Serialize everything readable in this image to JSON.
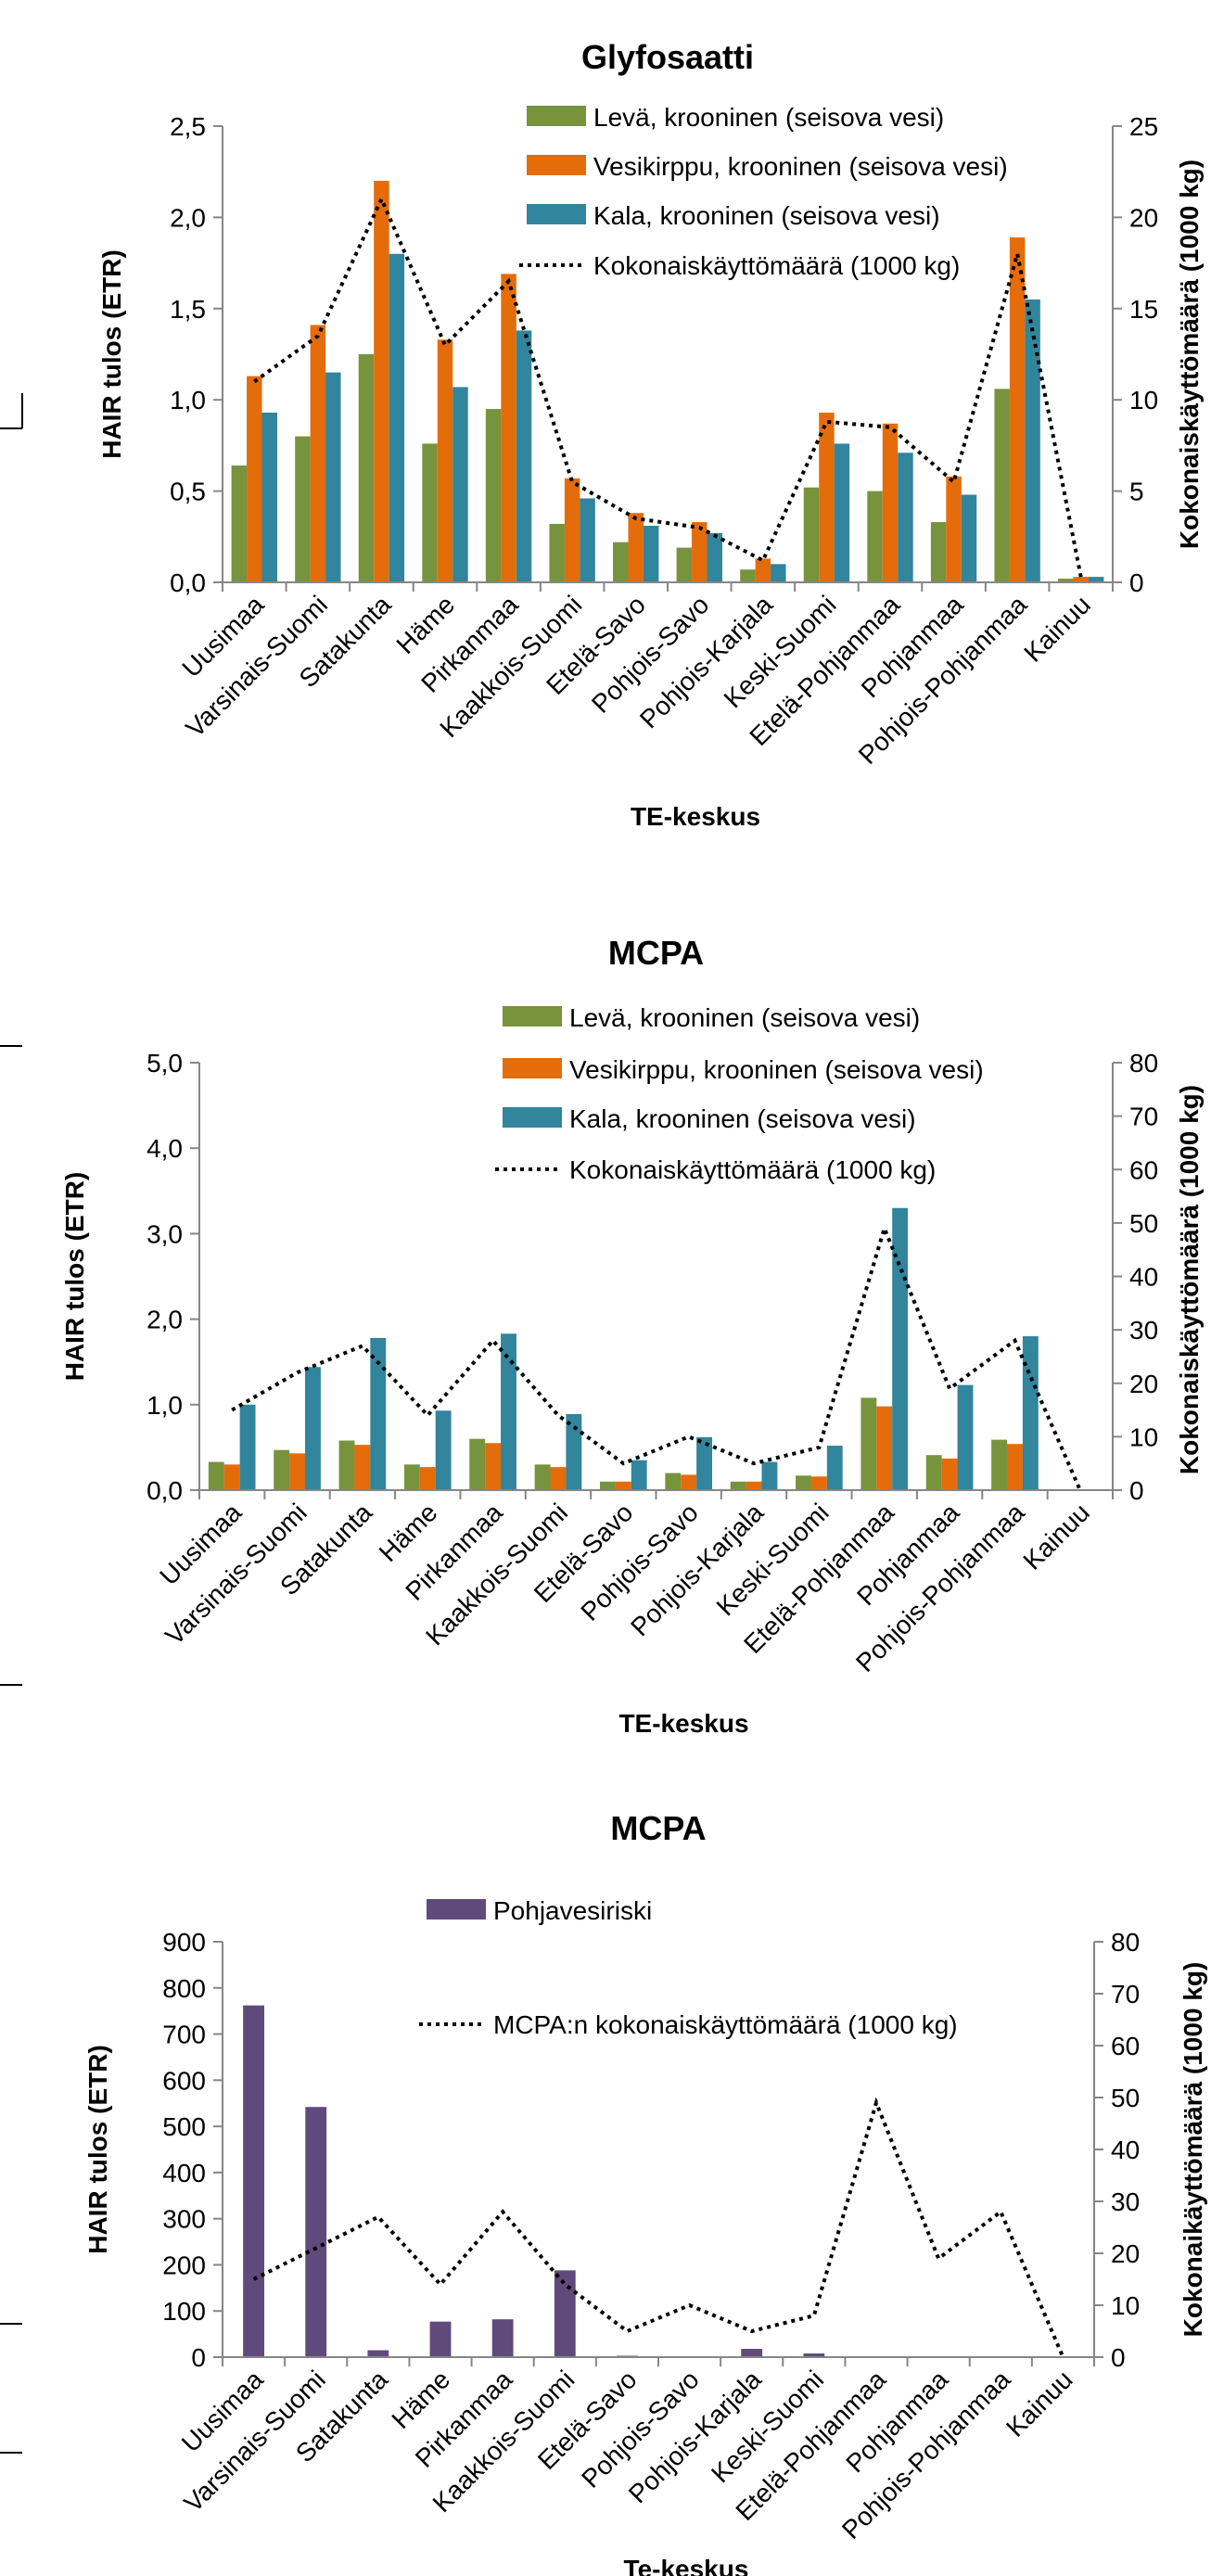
{
  "chart_data": [
    {
      "type": "bar",
      "title": "Glyfosaatti",
      "xlabel": "TE-keskus",
      "ylabel": "HAIR tulos (ETR)",
      "ylabel_right": "Kokonaiskäyttömäärä (1000 kg)",
      "ylim": [
        0,
        2.5
      ],
      "ylim_right": [
        0,
        25
      ],
      "yticks": [
        "0,0",
        "0,5",
        "1,0",
        "1,5",
        "2,0",
        "2,5"
      ],
      "yticks_right": [
        "0",
        "5",
        "10",
        "15",
        "20",
        "25"
      ],
      "categories": [
        "Uusimaa",
        "Varsinais-Suomi",
        "Satakunta",
        "Häme",
        "Pirkanmaa",
        "Kaakkois-Suomi",
        "Etelä-Savo",
        "Pohjois-Savo",
        "Pohjois-Karjala",
        "Keski-Suomi",
        "Etelä-Pohjanmaa",
        "Pohjanmaa",
        "Pohjois-Pohjanmaa",
        "Kainuu"
      ],
      "series": [
        {
          "name": "Levä, krooninen (seisova vesi)",
          "color": "#77933c",
          "values": [
            0.64,
            0.8,
            1.25,
            0.76,
            0.95,
            0.32,
            0.22,
            0.19,
            0.07,
            0.52,
            0.5,
            0.33,
            1.06,
            0.02
          ]
        },
        {
          "name": "Vesikirppu, krooninen (seisova vesi)",
          "color": "#e46c0a",
          "values": [
            1.13,
            1.41,
            2.2,
            1.33,
            1.69,
            0.57,
            0.38,
            0.33,
            0.13,
            0.93,
            0.87,
            0.58,
            1.89,
            0.03
          ]
        },
        {
          "name": "Kala, krooninen (seisova vesi)",
          "color": "#31859c",
          "values": [
            0.93,
            1.15,
            1.8,
            1.07,
            1.38,
            0.46,
            0.31,
            0.27,
            0.1,
            0.76,
            0.71,
            0.48,
            1.55,
            0.03
          ]
        }
      ],
      "line": {
        "name": "Kokonaiskäyttömäärä (1000 kg)",
        "axis": "right",
        "values": [
          11,
          13.5,
          21,
          13,
          16.5,
          5.5,
          3.5,
          3,
          1.2,
          8.8,
          8.5,
          5.5,
          18,
          0.3
        ]
      }
    },
    {
      "type": "bar",
      "title": "MCPA",
      "xlabel": "TE-keskus",
      "ylabel": "HAIR tulos (ETR)",
      "ylabel_right": "Kokonaiskäyttömäärä (1000 kg)",
      "ylim": [
        0,
        5
      ],
      "ylim_right": [
        0,
        80
      ],
      "yticks": [
        "0,0",
        "1,0",
        "2,0",
        "3,0",
        "4,0",
        "5,0"
      ],
      "yticks_right": [
        "0",
        "10",
        "20",
        "30",
        "40",
        "50",
        "60",
        "70",
        "80"
      ],
      "categories": [
        "Uusimaa",
        "Varsinais-Suomi",
        "Satakunta",
        "Häme",
        "Pirkanmaa",
        "Kaakkois-Suomi",
        "Etelä-Savo",
        "Pohjois-Savo",
        "Pohjois-Karjala",
        "Keski-Suomi",
        "Etelä-Pohjanmaa",
        "Pohjanmaa",
        "Pohjois-Pohjanmaa",
        "Kainuu"
      ],
      "series": [
        {
          "name": "Levä, krooninen (seisova vesi)",
          "color": "#77933c",
          "values": [
            0.33,
            0.47,
            0.58,
            0.3,
            0.6,
            0.3,
            0.1,
            0.2,
            0.1,
            0.17,
            1.08,
            0.41,
            0.59,
            0.0
          ]
        },
        {
          "name": "Vesikirppu, krooninen (seisova vesi)",
          "color": "#e46c0a",
          "values": [
            0.3,
            0.43,
            0.53,
            0.27,
            0.55,
            0.27,
            0.1,
            0.18,
            0.1,
            0.16,
            0.98,
            0.37,
            0.54,
            0.0
          ]
        },
        {
          "name": "Kala, krooninen (seisova vesi)",
          "color": "#31859c",
          "values": [
            1.0,
            1.44,
            1.78,
            0.93,
            1.83,
            0.89,
            0.35,
            0.62,
            0.33,
            0.52,
            3.3,
            1.23,
            1.8,
            0.0
          ]
        }
      ],
      "line": {
        "name": "Kokonaiskäyttömäärä (1000 kg)",
        "axis": "right",
        "values": [
          15,
          22,
          27,
          14,
          28,
          14,
          5,
          10,
          5,
          8,
          49,
          19,
          28,
          0
        ]
      }
    },
    {
      "type": "bar",
      "title": "MCPA",
      "xlabel": "Te-keskus",
      "ylabel": "HAIR tulos (ETR)",
      "ylabel_right": "Kokonaikäyttömäärä (1000 kg)",
      "ylim": [
        0,
        900
      ],
      "ylim_right": [
        0,
        80
      ],
      "yticks": [
        "0",
        "100",
        "200",
        "300",
        "400",
        "500",
        "600",
        "700",
        "800",
        "900"
      ],
      "yticks_right": [
        "0",
        "10",
        "20",
        "30",
        "40",
        "50",
        "60",
        "70",
        "80"
      ],
      "categories": [
        "Uusimaa",
        "Varsinais-Suomi",
        "Satakunta",
        "Häme",
        "Pirkanmaa",
        "Kaakkois-Suomi",
        "Etelä-Savo",
        "Pohjois-Savo",
        "Pohjois-Karjala",
        "Keski-Suomi",
        "Etelä-Pohjanmaa",
        "Pohjanmaa",
        "Pohjois-Pohjanmaa",
        "Kainuu"
      ],
      "series": [
        {
          "name": "Pohjavesiriski",
          "color": "#604a7b",
          "values": [
            762,
            542,
            15,
            77,
            82,
            188,
            3,
            2,
            18,
            8,
            0,
            0,
            2,
            1
          ]
        }
      ],
      "line": {
        "name": "MCPA:n kokonaiskäyttömäärä (1000 kg)",
        "axis": "right",
        "values": [
          15,
          21,
          27,
          14,
          28,
          14,
          5,
          10,
          5,
          8,
          49,
          19,
          28,
          0
        ]
      }
    }
  ]
}
